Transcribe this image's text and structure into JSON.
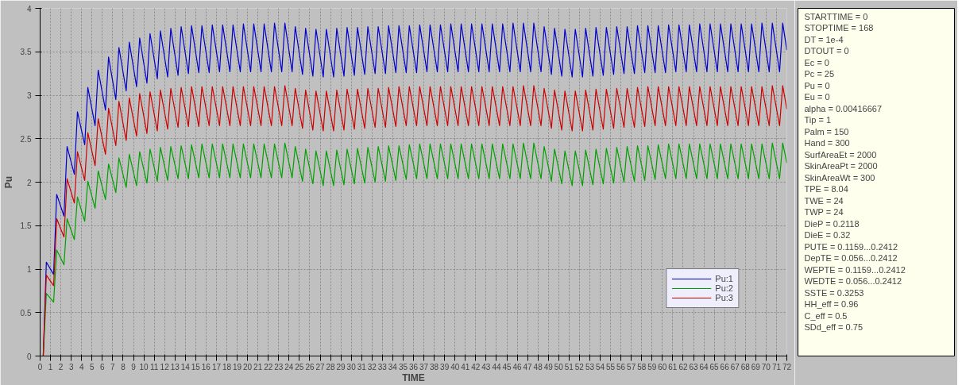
{
  "chart_data": {
    "type": "line",
    "xlabel": "TIME",
    "ylabel": "Pu",
    "x": [
      0,
      0.3,
      0.6,
      1.3,
      1.6,
      2.3,
      2.6,
      3.3,
      3.6,
      4.3,
      4.6,
      5.3,
      5.6,
      6.3,
      6.6,
      7.3,
      7.6,
      8.3,
      8.6,
      9.3,
      9.6,
      10.3,
      10.6,
      11.3,
      11.6,
      12.3,
      12.6,
      13.3,
      13.6,
      14.3,
      14.6,
      15.3,
      15.6,
      16.3,
      16.6,
      17.3,
      17.6,
      18.3,
      18.6,
      19.3,
      19.6,
      20.3,
      20.6,
      21.3,
      21.6,
      22.3,
      22.6,
      23.3,
      23.6,
      24.3,
      24.6,
      25.3,
      25.6,
      26.3,
      26.6,
      27.3,
      27.6,
      28.3,
      28.6,
      29.3,
      29.6,
      30.3,
      30.6,
      31.3,
      31.6,
      32.3,
      32.6,
      33.3,
      33.6,
      34.3,
      34.6,
      35.3,
      35.6,
      36.3,
      36.6,
      37.3,
      37.6,
      38.3,
      38.6,
      39.3,
      39.6,
      40.3,
      40.6,
      41.3,
      41.6,
      42.3,
      42.6,
      43.3,
      43.6,
      44.3,
      44.6,
      45.3,
      45.6,
      46.3,
      46.6,
      47.3,
      47.6,
      48.3,
      48.6,
      49.3,
      49.6,
      50.3,
      50.6,
      51.3,
      51.6,
      52.3,
      52.6,
      53.3,
      53.6,
      54.3,
      54.6,
      55.3,
      55.6,
      56.3,
      56.6,
      57.3,
      57.6,
      58.3,
      58.6,
      59.3,
      59.6,
      60.3,
      60.6,
      61.3,
      61.6,
      62.3,
      62.6,
      63.3,
      63.6,
      64.3,
      64.6,
      65.3,
      65.6,
      66.3,
      66.6,
      67.3,
      67.6,
      68.3,
      68.6,
      69.3,
      69.6,
      70.3,
      70.6,
      71.3,
      71.6,
      72
    ],
    "series": [
      {
        "name": "Pu:1",
        "color": "#0000cc",
        "values": [
          0,
          0,
          1.08,
          0.94,
          1.86,
          1.61,
          2.41,
          2.09,
          2.81,
          2.43,
          3.09,
          2.65,
          3.29,
          2.83,
          3.44,
          2.95,
          3.55,
          3.05,
          3.61,
          3.1,
          3.66,
          3.14,
          3.71,
          3.19,
          3.74,
          3.21,
          3.77,
          3.23,
          3.79,
          3.25,
          3.8,
          3.26,
          3.8,
          3.26,
          3.81,
          3.27,
          3.81,
          3.27,
          3.81,
          3.27,
          3.82,
          3.27,
          3.82,
          3.27,
          3.82,
          3.27,
          3.83,
          3.27,
          3.83,
          3.27,
          3.79,
          3.24,
          3.77,
          3.22,
          3.76,
          3.21,
          3.76,
          3.21,
          3.77,
          3.22,
          3.78,
          3.23,
          3.78,
          3.24,
          3.79,
          3.25,
          3.79,
          3.25,
          3.8,
          3.26,
          3.8,
          3.26,
          3.8,
          3.26,
          3.81,
          3.27,
          3.81,
          3.27,
          3.81,
          3.27,
          3.82,
          3.27,
          3.82,
          3.27,
          3.82,
          3.27,
          3.82,
          3.27,
          3.82,
          3.27,
          3.82,
          3.27,
          3.83,
          3.27,
          3.83,
          3.27,
          3.83,
          3.27,
          3.79,
          3.24,
          3.77,
          3.22,
          3.76,
          3.21,
          3.76,
          3.21,
          3.77,
          3.22,
          3.78,
          3.23,
          3.78,
          3.24,
          3.79,
          3.25,
          3.79,
          3.25,
          3.8,
          3.26,
          3.8,
          3.26,
          3.8,
          3.26,
          3.81,
          3.27,
          3.81,
          3.27,
          3.81,
          3.27,
          3.82,
          3.27,
          3.82,
          3.27,
          3.82,
          3.27,
          3.82,
          3.27,
          3.82,
          3.27,
          3.82,
          3.27,
          3.83,
          3.27,
          3.83,
          3.27,
          3.83,
          3.52
        ]
      },
      {
        "name": "Pu:2",
        "color": "#00a000",
        "values": [
          0,
          0,
          0.72,
          0.62,
          1.22,
          1.05,
          1.58,
          1.34,
          1.83,
          1.55,
          2.01,
          1.7,
          2.13,
          1.8,
          2.21,
          1.88,
          2.28,
          1.94,
          2.32,
          1.96,
          2.35,
          1.99,
          2.38,
          2.01,
          2.4,
          2.02,
          2.41,
          2.04,
          2.42,
          2.04,
          2.43,
          2.05,
          2.44,
          2.05,
          2.44,
          2.05,
          2.44,
          2.05,
          2.44,
          2.05,
          2.44,
          2.05,
          2.44,
          2.05,
          2.44,
          2.05,
          2.44,
          2.05,
          2.45,
          2.05,
          2.41,
          2.01,
          2.38,
          1.98,
          2.36,
          1.96,
          2.36,
          1.96,
          2.37,
          1.97,
          2.38,
          1.98,
          2.39,
          1.99,
          2.4,
          2.0,
          2.41,
          2.01,
          2.42,
          2.02,
          2.42,
          2.03,
          2.43,
          2.04,
          2.44,
          2.04,
          2.44,
          2.04,
          2.44,
          2.04,
          2.44,
          2.04,
          2.44,
          2.04,
          2.44,
          2.04,
          2.44,
          2.04,
          2.44,
          2.04,
          2.44,
          2.04,
          2.44,
          2.04,
          2.45,
          2.04,
          2.45,
          2.04,
          2.41,
          2.01,
          2.38,
          1.98,
          2.36,
          1.96,
          2.36,
          1.96,
          2.37,
          1.97,
          2.38,
          1.98,
          2.39,
          1.99,
          2.4,
          2.0,
          2.41,
          2.01,
          2.42,
          2.02,
          2.42,
          2.03,
          2.43,
          2.04,
          2.44,
          2.04,
          2.44,
          2.04,
          2.44,
          2.04,
          2.44,
          2.04,
          2.44,
          2.04,
          2.44,
          2.04,
          2.44,
          2.04,
          2.44,
          2.04,
          2.44,
          2.04,
          2.44,
          2.04,
          2.45,
          2.04,
          2.45,
          2.22
        ]
      },
      {
        "name": "Pu:3",
        "color": "#cc0000",
        "values": [
          0,
          0,
          0.93,
          0.81,
          1.58,
          1.37,
          2.04,
          1.76,
          2.35,
          2.02,
          2.57,
          2.19,
          2.73,
          2.32,
          2.85,
          2.42,
          2.93,
          2.48,
          2.97,
          2.53,
          3.02,
          2.56,
          3.04,
          2.59,
          3.06,
          2.61,
          3.08,
          2.63,
          3.09,
          2.64,
          3.1,
          2.64,
          3.1,
          2.65,
          3.1,
          2.65,
          3.1,
          2.65,
          3.1,
          2.65,
          3.1,
          2.65,
          3.1,
          2.65,
          3.1,
          2.65,
          3.1,
          2.65,
          3.11,
          2.65,
          3.08,
          2.62,
          3.06,
          2.6,
          3.05,
          2.59,
          3.05,
          2.59,
          3.06,
          2.6,
          3.07,
          2.61,
          3.07,
          2.62,
          3.08,
          2.63,
          3.08,
          2.63,
          3.09,
          2.64,
          3.1,
          2.65,
          3.1,
          2.65,
          3.1,
          2.65,
          3.1,
          2.65,
          3.1,
          2.65,
          3.1,
          2.65,
          3.1,
          2.65,
          3.1,
          2.65,
          3.1,
          2.65,
          3.1,
          2.65,
          3.1,
          2.65,
          3.1,
          2.65,
          3.11,
          2.65,
          3.11,
          2.65,
          3.08,
          2.62,
          3.06,
          2.6,
          3.05,
          2.59,
          3.05,
          2.59,
          3.06,
          2.6,
          3.07,
          2.61,
          3.07,
          2.62,
          3.08,
          2.63,
          3.08,
          2.63,
          3.09,
          2.64,
          3.1,
          2.65,
          3.1,
          2.65,
          3.1,
          2.65,
          3.1,
          2.65,
          3.1,
          2.65,
          3.1,
          2.65,
          3.1,
          2.65,
          3.1,
          2.65,
          3.1,
          2.65,
          3.1,
          2.65,
          3.1,
          2.65,
          3.1,
          2.65,
          3.11,
          2.65,
          3.11,
          2.84
        ]
      }
    ],
    "xlim": [
      0,
      72
    ],
    "xticks": [
      0,
      1,
      2,
      3,
      4,
      5,
      6,
      7,
      8,
      9,
      10,
      11,
      12,
      13,
      14,
      15,
      16,
      17,
      18,
      19,
      20,
      21,
      22,
      23,
      24,
      25,
      26,
      27,
      28,
      29,
      30,
      31,
      32,
      33,
      34,
      35,
      36,
      37,
      38,
      39,
      40,
      41,
      42,
      43,
      44,
      45,
      46,
      47,
      48,
      49,
      50,
      51,
      52,
      53,
      54,
      55,
      56,
      57,
      58,
      59,
      60,
      61,
      62,
      63,
      64,
      65,
      66,
      67,
      68,
      69,
      70,
      71,
      72
    ],
    "ylim": [
      0,
      4
    ],
    "yticks": [
      0,
      0.5,
      1,
      1.5,
      2,
      2.5,
      3,
      3.5,
      4
    ],
    "grid": true,
    "legend": "bottom right",
    "marker": "none",
    "line_style": "solid",
    "annotations": [
      "STARTTIME = 0",
      "STOPTIME = 168",
      "DT = 1e-4",
      "DTOUT = 0",
      "Ec = 0",
      "Pc = 25",
      "Pu = 0",
      "Eu = 0",
      "alpha = 0.00416667",
      "Tip = 1",
      "Palm = 150",
      "Hand = 300",
      "SurfAreaEt = 2000",
      "SkinAreaPt = 2000",
      "SkinAreaWt = 300",
      "TPE = 8.04",
      "TWE = 24",
      "TWP = 24",
      "DieP = 0.2118",
      "DieE = 0.32",
      "PUTE = 0.1159...0.2412",
      "DepTE = 0.056...0.2412",
      "WEPTE = 0.1159...0.2412",
      "WEDTE = 0.056...0.2412",
      "SSTE = 0.3253",
      "HH_eff = 0.96",
      "C_eff = 0.5",
      "SDd_eff = 0.75"
    ]
  }
}
